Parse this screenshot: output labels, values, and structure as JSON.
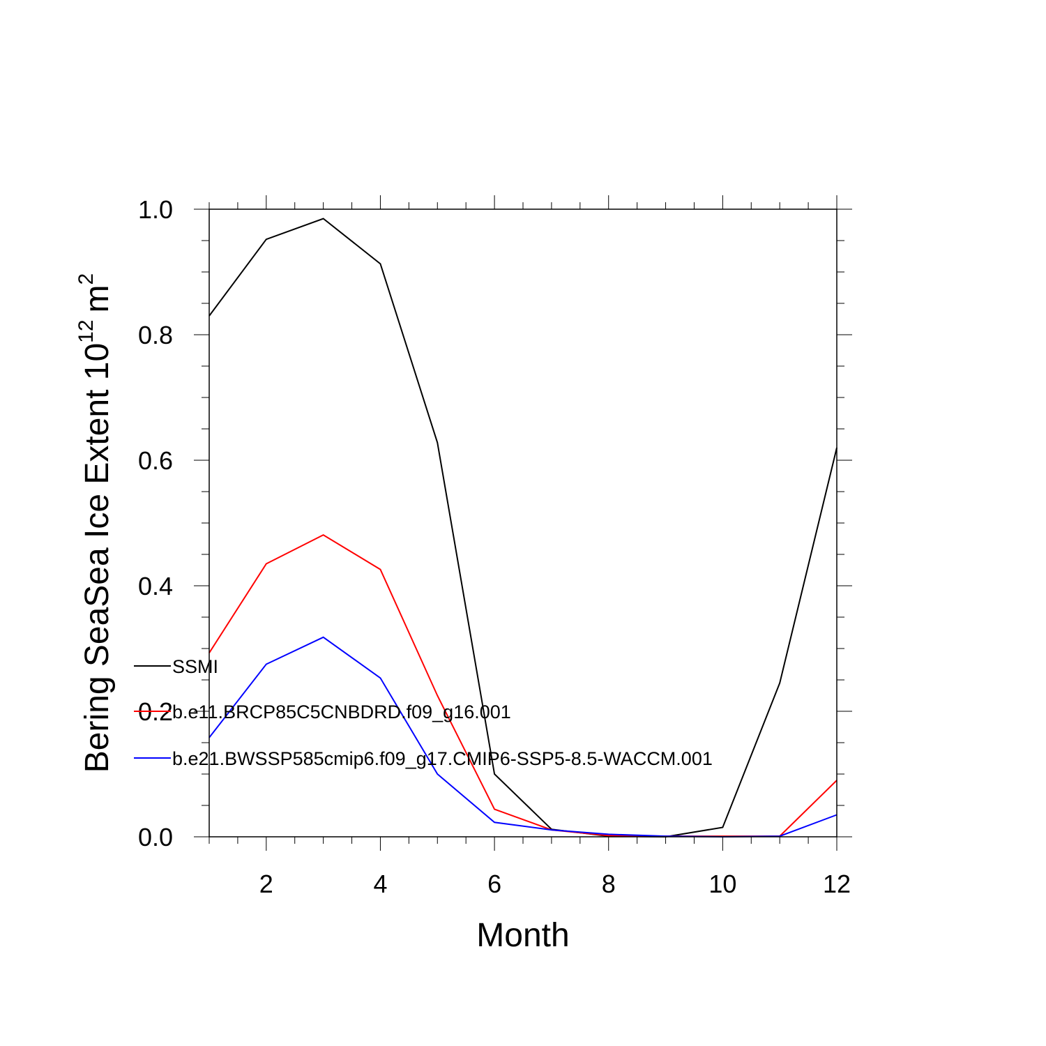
{
  "chart_data": {
    "type": "line",
    "title": "",
    "xlabel": "Month",
    "ylabel_text": "Bering SeaSea Ice Extent 10",
    "ylabel_exponent": "12",
    "ylabel_unit": "m",
    "ylabel_unit_exponent": "2",
    "xlim": [
      1,
      12
    ],
    "ylim": [
      0,
      1
    ],
    "x_ticks": [
      2,
      4,
      6,
      8,
      10,
      12
    ],
    "x_tick_labels": [
      "2",
      "4",
      "6",
      "8",
      "10",
      "12"
    ],
    "y_ticks": [
      0,
      0.2,
      0.4,
      0.6,
      0.8,
      1.0
    ],
    "y_tick_labels": [
      "0.0",
      "0.2",
      "0.4",
      "0.6",
      "0.8",
      "1.0"
    ],
    "grid": false,
    "legend_position": "left-middle",
    "x": [
      1,
      2,
      3,
      4,
      5,
      6,
      7,
      8,
      9,
      10,
      11,
      12
    ],
    "series": [
      {
        "name": "SSMI",
        "color": "#000000",
        "values": [
          0.83,
          0.952,
          0.985,
          0.913,
          0.628,
          0.1,
          0.012,
          0.001,
          0.0,
          0.015,
          0.245,
          0.62
        ]
      },
      {
        "name": "b.e11.BRCP85C5CNBDRD.f09_g16.001",
        "color": "#ff0000",
        "values": [
          0.293,
          0.435,
          0.481,
          0.426,
          0.225,
          0.044,
          0.011,
          0.002,
          0.001,
          0.001,
          0.001,
          0.09
        ]
      },
      {
        "name": "b.e21.BWSSP585cmip6.f09_g17.CMIP6-SSP5-8.5-WACCM.001",
        "color": "#0000ff",
        "values": [
          0.158,
          0.275,
          0.318,
          0.253,
          0.1,
          0.023,
          0.011,
          0.004,
          0.001,
          0.0,
          0.001,
          0.035
        ]
      }
    ]
  }
}
